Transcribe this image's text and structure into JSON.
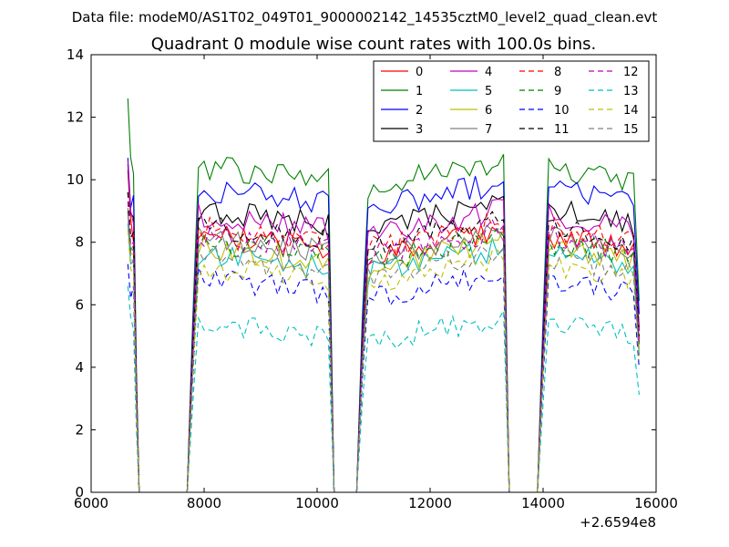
{
  "chart_data": {
    "type": "line",
    "suptitle": "Data file: modeM0/AS1T02_049T01_9000002142_14535cztM0_level2_quad_clean.evt",
    "title": "Quadrant 0 module wise count rates with 100.0s bins.",
    "xlabel": "",
    "ylabel": "",
    "xlim": [
      6000,
      16000
    ],
    "ylim": [
      0,
      14
    ],
    "x_offset_label": "+2.6594e8",
    "xticks": [
      "6000",
      "8000",
      "10000",
      "12000",
      "14000",
      "16000"
    ],
    "yticks": [
      "0",
      "2",
      "4",
      "6",
      "8",
      "10",
      "12",
      "14"
    ],
    "grid": false,
    "legend_position": "top-right",
    "legend_columns": 4,
    "gap_x": [
      6900,
      7000,
      7100,
      7200,
      7300,
      7400,
      7500,
      7600,
      7700,
      10400,
      10500,
      10600,
      10700,
      13500,
      13600,
      13700,
      13800,
      13900
    ],
    "segments": [
      {
        "x_start": 6650,
        "x_step": 50,
        "x_end": 6850
      },
      {
        "x_start": 7800,
        "x_step": 100,
        "x_end": 10300
      },
      {
        "x_start": 10800,
        "x_step": 100,
        "x_end": 13400
      },
      {
        "x_start": 14000,
        "x_step": 100,
        "x_end": 15700
      }
    ],
    "series": [
      {
        "name": "0",
        "color": "#ff0000",
        "dash": false,
        "level": 8.0,
        "peak": 10.3
      },
      {
        "name": "1",
        "color": "#008000",
        "dash": false,
        "level": 10.2,
        "peak": 12.6
      },
      {
        "name": "2",
        "color": "#0000ff",
        "dash": false,
        "level": 9.5,
        "peak": 10.7
      },
      {
        "name": "3",
        "color": "#000000",
        "dash": false,
        "level": 8.8,
        "peak": 10.5
      },
      {
        "name": "4",
        "color": "#bf00bf",
        "dash": false,
        "level": 8.6,
        "peak": 10.6
      },
      {
        "name": "5",
        "color": "#00bfbf",
        "dash": false,
        "level": 7.4,
        "peak": 8.6
      },
      {
        "name": "6",
        "color": "#bfbf00",
        "dash": false,
        "level": 7.6,
        "peak": 9.0
      },
      {
        "name": "7",
        "color": "#808080",
        "dash": false,
        "level": 7.9,
        "peak": 9.1
      },
      {
        "name": "8",
        "color": "#ff0000",
        "dash": true,
        "level": 8.2,
        "peak": 9.6
      },
      {
        "name": "9",
        "color": "#008000",
        "dash": true,
        "level": 7.8,
        "peak": 9.0
      },
      {
        "name": "10",
        "color": "#0000ff",
        "dash": true,
        "level": 6.6,
        "peak": 7.3
      },
      {
        "name": "11",
        "color": "#000000",
        "dash": true,
        "level": 8.3,
        "peak": 9.6
      },
      {
        "name": "12",
        "color": "#bf00bf",
        "dash": true,
        "level": 8.0,
        "peak": 9.3
      },
      {
        "name": "13",
        "color": "#00bfbf",
        "dash": true,
        "level": 5.2,
        "peak": 6.6
      },
      {
        "name": "14",
        "color": "#bfbf00",
        "dash": true,
        "level": 7.0,
        "peak": 8.4
      },
      {
        "name": "15",
        "color": "#808080",
        "dash": true,
        "level": 7.3,
        "peak": 8.9
      }
    ]
  }
}
